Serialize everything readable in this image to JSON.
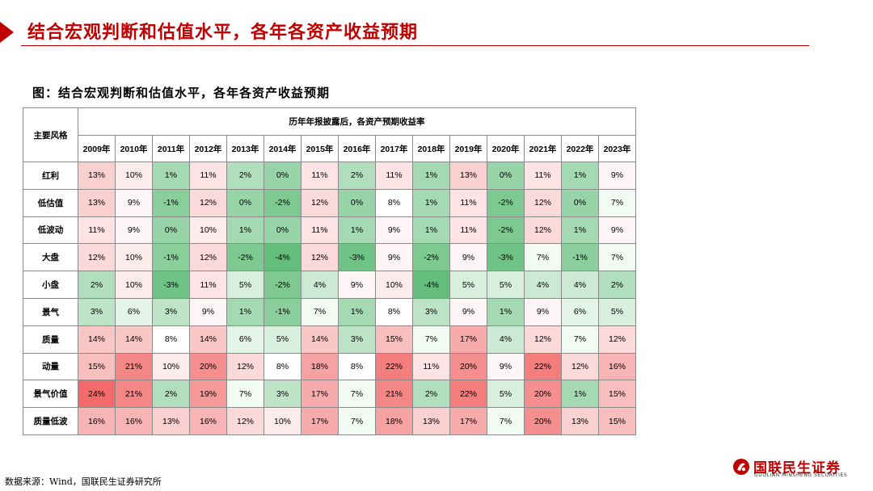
{
  "header": {
    "title": "结合宏观判断和估值水平，各年各资产收益预期"
  },
  "figure": {
    "title": "图：结合宏观判断和估值水平，各年各资产收益预期"
  },
  "table": {
    "corner_label": "主要风格",
    "group_header": "历年年报披露后，各资产预期收益率",
    "years": [
      "2009年",
      "2010年",
      "2011年",
      "2012年",
      "2013年",
      "2014年",
      "2015年",
      "2016年",
      "2017年",
      "2018年",
      "2019年",
      "2020年",
      "2021年",
      "2022年",
      "2023年"
    ],
    "rows": [
      {
        "label": "红利",
        "values": [
          "13%",
          "10%",
          "1%",
          "11%",
          "2%",
          "0%",
          "11%",
          "2%",
          "11%",
          "1%",
          "13%",
          "0%",
          "11%",
          "1%",
          "9%"
        ]
      },
      {
        "label": "低估值",
        "values": [
          "13%",
          "9%",
          "-1%",
          "12%",
          "0%",
          "-2%",
          "12%",
          "0%",
          "8%",
          "1%",
          "11%",
          "-2%",
          "12%",
          "0%",
          "7%"
        ]
      },
      {
        "label": "低波动",
        "values": [
          "11%",
          "9%",
          "0%",
          "10%",
          "1%",
          "0%",
          "11%",
          "1%",
          "9%",
          "1%",
          "11%",
          "-2%",
          "12%",
          "1%",
          "9%"
        ]
      },
      {
        "label": "大盘",
        "values": [
          "12%",
          "10%",
          "-1%",
          "12%",
          "-2%",
          "-4%",
          "12%",
          "-3%",
          "9%",
          "-2%",
          "9%",
          "-3%",
          "7%",
          "-1%",
          "7%"
        ]
      },
      {
        "label": "小盘",
        "values": [
          "2%",
          "10%",
          "-3%",
          "11%",
          "5%",
          "-2%",
          "4%",
          "9%",
          "10%",
          "-4%",
          "5%",
          "5%",
          "4%",
          "4%",
          "2%"
        ]
      },
      {
        "label": "景气",
        "values": [
          "3%",
          "6%",
          "3%",
          "9%",
          "1%",
          "-1%",
          "7%",
          "1%",
          "8%",
          "3%",
          "9%",
          "1%",
          "9%",
          "6%",
          "5%"
        ]
      },
      {
        "label": "质量",
        "values": [
          "14%",
          "14%",
          "8%",
          "14%",
          "6%",
          "5%",
          "14%",
          "3%",
          "15%",
          "7%",
          "17%",
          "4%",
          "12%",
          "7%",
          "12%"
        ]
      },
      {
        "label": "动量",
        "values": [
          "15%",
          "21%",
          "10%",
          "20%",
          "12%",
          "8%",
          "18%",
          "8%",
          "22%",
          "11%",
          "20%",
          "9%",
          "22%",
          "12%",
          "16%"
        ]
      },
      {
        "label": "景气价值",
        "values": [
          "24%",
          "21%",
          "2%",
          "19%",
          "7%",
          "3%",
          "17%",
          "7%",
          "21%",
          "2%",
          "22%",
          "5%",
          "20%",
          "1%",
          "15%"
        ]
      },
      {
        "label": "质量低波",
        "values": [
          "16%",
          "16%",
          "13%",
          "16%",
          "12%",
          "10%",
          "17%",
          "7%",
          "18%",
          "13%",
          "17%",
          "7%",
          "20%",
          "13%",
          "15%"
        ]
      }
    ]
  },
  "source": "数据来源：Wind，国联民生证券研究所",
  "logo": {
    "cn": "国联民生证券",
    "en": "GUOLIAN MINSHENG SECURITIES",
    "mark": "logo-mark-icon"
  },
  "colors": {
    "accent": "#c00000",
    "high": "#f26a6a",
    "mid": "#ffffff",
    "low": "#63be7b"
  }
}
